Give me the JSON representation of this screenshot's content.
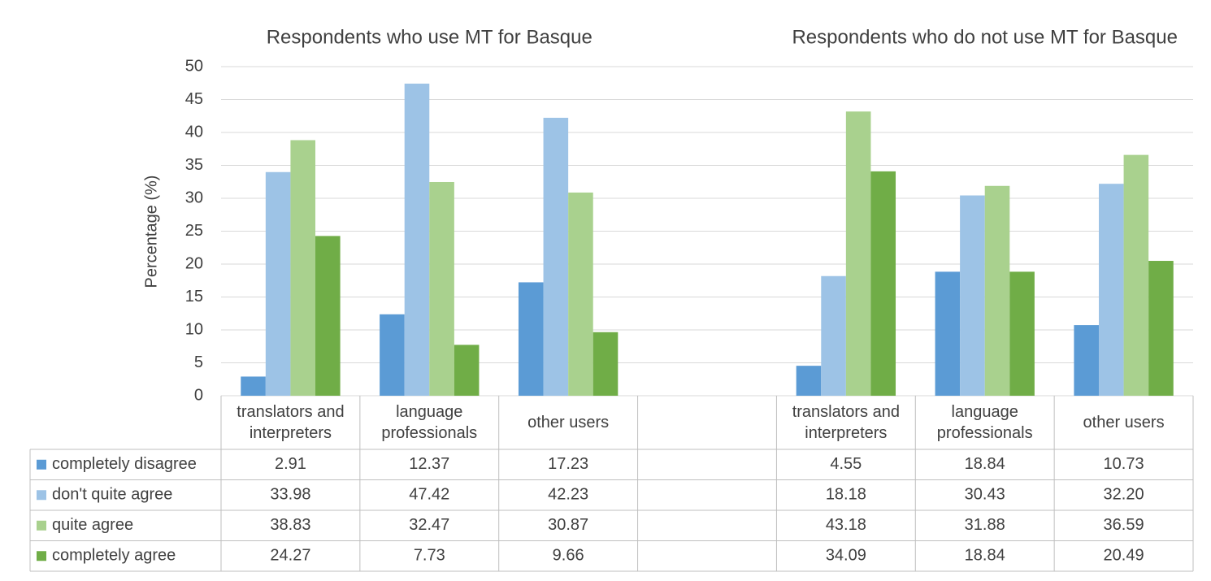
{
  "chart_data": {
    "type": "bar",
    "group_titles": [
      "Respondents who use MT for Basque",
      "Respondents who do not use MT for Basque"
    ],
    "y_label": "Percentage (%)",
    "categories": [
      "translators and interpreters",
      "language professionals",
      "other users",
      null,
      "translators and interpreters",
      "language professionals",
      "other users"
    ],
    "series": [
      {
        "name": "completely disagree",
        "color": "#5b9bd5",
        "values": [
          2.91,
          12.37,
          17.23,
          null,
          4.55,
          18.84,
          10.73
        ],
        "value_labels": [
          "2.91",
          "12.37",
          "17.23",
          null,
          "4.55",
          "18.84",
          "10.73"
        ]
      },
      {
        "name": "don't quite agree",
        "color": "#9dc3e6",
        "values": [
          33.98,
          47.42,
          42.23,
          null,
          18.18,
          30.43,
          32.2
        ],
        "value_labels": [
          "33.98",
          "47.42",
          "42.23",
          null,
          "18.18",
          "30.43",
          "32.20"
        ]
      },
      {
        "name": "quite agree",
        "color": "#a9d18e",
        "values": [
          38.83,
          32.47,
          30.87,
          null,
          43.18,
          31.88,
          36.59
        ],
        "value_labels": [
          "38.83",
          "32.47",
          "30.87",
          null,
          "43.18",
          "31.88",
          "36.59"
        ]
      },
      {
        "name": "completely agree",
        "color": "#70ad47",
        "values": [
          24.27,
          7.73,
          9.66,
          null,
          34.09,
          18.84,
          20.49
        ],
        "value_labels": [
          "24.27",
          "7.73",
          "9.66",
          null,
          "34.09",
          "18.84",
          "20.49"
        ]
      }
    ],
    "ylim": [
      0,
      50
    ],
    "yticks": [
      0,
      5,
      10,
      15,
      20,
      25,
      30,
      35,
      40,
      45,
      50
    ],
    "grid": true,
    "data_table": true
  }
}
